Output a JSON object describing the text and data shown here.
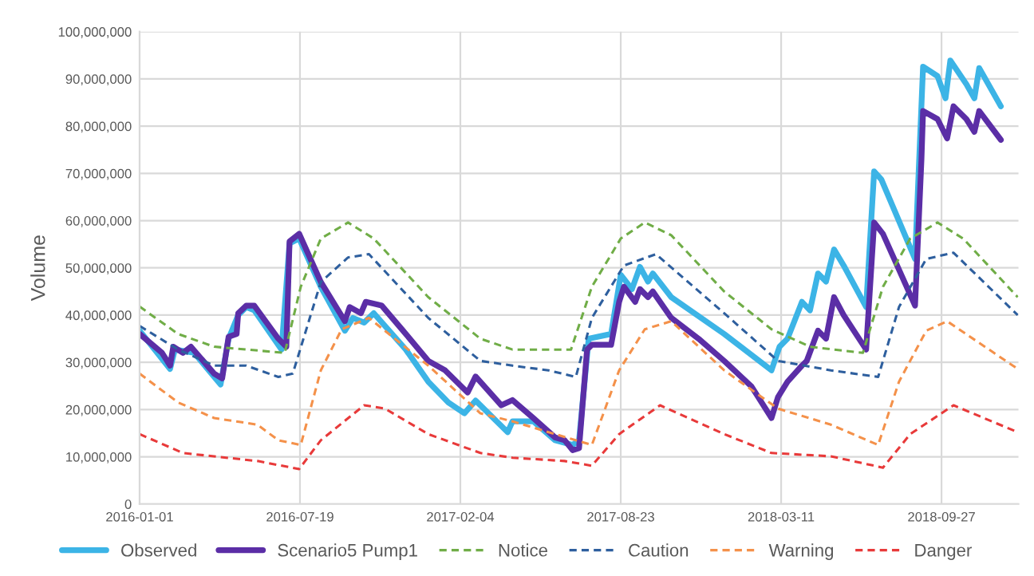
{
  "chart_data": {
    "type": "line",
    "ylabel": "Volume",
    "xlim": [
      "2016-01-01",
      "2019-01-01"
    ],
    "xticks": [
      "2016-01-01",
      "2016-07-19",
      "2017-02-04",
      "2017-08-23",
      "2018-03-11",
      "2018-09-27"
    ],
    "ylim": [
      0,
      100000000
    ],
    "yticks": [
      0,
      {
        "value": 10000000,
        "label": "10,000,000"
      },
      {
        "value": 20000000,
        "label": "20,000,000"
      },
      {
        "value": 30000000,
        "label": "30,000,000"
      },
      {
        "value": 40000000,
        "label": "40,000,000"
      },
      {
        "value": 50000000,
        "label": "50,000,000"
      },
      {
        "value": 60000000,
        "label": "60,000,000"
      },
      {
        "value": 70000000,
        "label": "70,000,000"
      },
      {
        "value": 80000000,
        "label": "80,000,000"
      },
      {
        "value": 90000000,
        "label": "90,000,000"
      },
      {
        "value": 100000000,
        "label": "100,000,000"
      }
    ],
    "grid": true,
    "legend": "bottom",
    "series": [
      {
        "name": "Observed",
        "color": "#3cb4e6",
        "line_style": "solid",
        "x": [
          "2016-01-01",
          "2016-02-08",
          "2016-02-14",
          "2016-03-09",
          "2016-04-11",
          "2016-04-21",
          "2016-05-03",
          "2016-05-13",
          "2016-05-23",
          "2016-06-26",
          "2016-07-06",
          "2016-07-18",
          "2016-08-14",
          "2016-09-13",
          "2016-09-23",
          "2016-10-07",
          "2016-10-19",
          "2016-11-28",
          "2016-12-26",
          "2017-01-20",
          "2017-02-09",
          "2017-02-23",
          "2017-04-04",
          "2017-04-10",
          "2017-05-06",
          "2017-06-02",
          "2017-06-24",
          "2017-07-02",
          "2017-07-14",
          "2017-08-11",
          "2017-08-23",
          "2017-09-06",
          "2017-09-16",
          "2017-09-26",
          "2017-10-02",
          "2017-10-25",
          "2017-12-30",
          "2018-02-27",
          "2018-03-09",
          "2018-03-19",
          "2018-04-06",
          "2018-04-16",
          "2018-04-26",
          "2018-05-06",
          "2018-05-16",
          "2018-05-28",
          "2018-06-25",
          "2018-07-05",
          "2018-07-14",
          "2018-08-25",
          "2018-09-04",
          "2018-09-22",
          "2018-10-02",
          "2018-10-08",
          "2018-10-28",
          "2018-11-07",
          "2018-11-13",
          "2018-12-10"
        ],
        "values": [
          36700000,
          28600000,
          32700000,
          32000000,
          25300000,
          35000000,
          40000000,
          41700000,
          41000000,
          32700000,
          55200000,
          56200000,
          46000000,
          36700000,
          39400000,
          38400000,
          40400000,
          32700000,
          25900000,
          21500000,
          19200000,
          21900000,
          15200000,
          17500000,
          17500000,
          13500000,
          12500000,
          13500000,
          35000000,
          36000000,
          48500000,
          45500000,
          50200000,
          47100000,
          48800000,
          43800000,
          36000000,
          28300000,
          33300000,
          35000000,
          42800000,
          41000000,
          48800000,
          47100000,
          53900000,
          50500000,
          41700000,
          70400000,
          68700000,
          51900000,
          92600000,
          90600000,
          85900000,
          93900000,
          88900000,
          85900000,
          92300000,
          84200000
        ]
      },
      {
        "name": "Scenario5 Pump1",
        "color": "#5b2ea6",
        "line_style": "solid",
        "x": [
          "2016-01-01",
          "2016-01-29",
          "2016-02-08",
          "2016-02-12",
          "2016-02-24",
          "2016-03-05",
          "2016-04-03",
          "2016-04-13",
          "2016-04-21",
          "2016-05-01",
          "2016-05-03",
          "2016-05-13",
          "2016-05-23",
          "2016-06-22",
          "2016-07-02",
          "2016-07-06",
          "2016-07-18",
          "2016-08-14",
          "2016-09-13",
          "2016-09-19",
          "2016-10-03",
          "2016-10-09",
          "2016-10-29",
          "2016-11-28",
          "2016-12-26",
          "2017-01-16",
          "2017-02-13",
          "2017-02-23",
          "2017-03-27",
          "2017-04-10",
          "2017-05-06",
          "2017-06-02",
          "2017-06-14",
          "2017-06-24",
          "2017-07-02",
          "2017-07-12",
          "2017-07-18",
          "2017-08-11",
          "2017-08-21",
          "2017-08-27",
          "2017-09-10",
          "2017-09-16",
          "2017-09-26",
          "2017-10-02",
          "2017-10-25",
          "2017-11-28",
          "2017-12-30",
          "2018-02-02",
          "2018-02-27",
          "2018-03-07",
          "2018-03-19",
          "2018-04-06",
          "2018-04-12",
          "2018-04-26",
          "2018-05-06",
          "2018-05-16",
          "2018-05-28",
          "2018-06-25",
          "2018-07-05",
          "2018-07-16",
          "2018-08-25",
          "2018-09-02",
          "2018-09-04",
          "2018-09-22",
          "2018-10-04",
          "2018-10-12",
          "2018-10-28",
          "2018-11-07",
          "2018-11-13",
          "2018-12-10"
        ],
        "values": [
          36000000,
          32000000,
          29300000,
          33300000,
          32000000,
          33300000,
          27600000,
          26600000,
          35400000,
          36000000,
          40400000,
          42000000,
          42000000,
          35000000,
          33300000,
          55600000,
          57200000,
          47000000,
          38700000,
          41700000,
          40400000,
          42800000,
          42000000,
          36000000,
          30300000,
          28300000,
          23600000,
          27000000,
          20900000,
          22000000,
          18200000,
          14100000,
          13500000,
          11400000,
          11800000,
          32700000,
          33700000,
          33700000,
          42800000,
          46000000,
          42800000,
          45500000,
          43800000,
          45000000,
          39400000,
          35000000,
          30300000,
          24900000,
          18200000,
          22600000,
          25900000,
          29300000,
          30300000,
          36700000,
          35000000,
          43800000,
          40000000,
          32700000,
          59600000,
          57200000,
          42000000,
          73000000,
          83200000,
          81500000,
          77400000,
          84200000,
          81500000,
          78800000,
          83200000,
          77100000
        ]
      },
      {
        "name": "Notice",
        "color": "#70ad47",
        "line_style": "dashed",
        "x": [
          "2016-01-01",
          "2016-02-18",
          "2016-04-03",
          "2016-06-30",
          "2016-07-20",
          "2016-08-14",
          "2016-09-17",
          "2016-10-19",
          "2016-12-26",
          "2017-03-01",
          "2017-04-10",
          "2017-06-22",
          "2017-07-18",
          "2017-08-23",
          "2017-09-22",
          "2017-10-25",
          "2017-12-30",
          "2018-02-27",
          "2018-04-16",
          "2018-06-21",
          "2018-07-16",
          "2018-08-19",
          "2018-09-22",
          "2018-10-24",
          "2018-12-31"
        ],
        "values": [
          41800000,
          36000000,
          33300000,
          32000000,
          46000000,
          56200000,
          59600000,
          56200000,
          43800000,
          35000000,
          32700000,
          32700000,
          46000000,
          56200000,
          59600000,
          56900000,
          45000000,
          37000000,
          33300000,
          32000000,
          46000000,
          56200000,
          59600000,
          56200000,
          43800000
        ]
      },
      {
        "name": "Caution",
        "color": "#2e5f9e",
        "line_style": "dashed",
        "x": [
          "2016-01-01",
          "2016-02-18",
          "2016-04-03",
          "2016-05-13",
          "2016-06-22",
          "2016-07-10",
          "2016-08-14",
          "2016-09-17",
          "2016-10-13",
          "2016-12-26",
          "2017-03-01",
          "2017-04-10",
          "2017-05-25",
          "2017-06-28",
          "2017-07-18",
          "2017-08-27",
          "2017-10-06",
          "2017-12-30",
          "2018-03-07",
          "2018-05-12",
          "2018-07-10",
          "2018-08-05",
          "2018-09-08",
          "2018-10-12",
          "2018-12-31"
        ],
        "values": [
          37700000,
          32700000,
          29300000,
          29300000,
          26900000,
          27600000,
          47000000,
          52200000,
          52900000,
          39400000,
          30300000,
          29300000,
          28300000,
          26900000,
          39400000,
          50500000,
          52900000,
          40400000,
          30300000,
          28300000,
          26900000,
          41700000,
          51900000,
          53200000,
          40000000
        ]
      },
      {
        "name": "Warning",
        "color": "#f4914a",
        "line_style": "dashed",
        "x": [
          "2016-01-01",
          "2016-02-18",
          "2016-04-03",
          "2016-05-27",
          "2016-06-22",
          "2016-07-20",
          "2016-08-14",
          "2016-09-09",
          "2016-10-13",
          "2016-12-26",
          "2017-03-01",
          "2017-04-10",
          "2017-06-02",
          "2017-07-18",
          "2017-08-21",
          "2017-09-22",
          "2017-10-25",
          "2017-12-30",
          "2018-03-07",
          "2018-05-12",
          "2018-07-10",
          "2018-08-05",
          "2018-09-08",
          "2018-10-04",
          "2018-12-31"
        ],
        "values": [
          27600000,
          21500000,
          18200000,
          16800000,
          13500000,
          12500000,
          28300000,
          37000000,
          39400000,
          29300000,
          19200000,
          17500000,
          14800000,
          12500000,
          28300000,
          37000000,
          38700000,
          28300000,
          20200000,
          16800000,
          12500000,
          25900000,
          36700000,
          38700000,
          28600000
        ]
      },
      {
        "name": "Danger",
        "color": "#e83a3a",
        "line_style": "dashed",
        "x": [
          "2016-01-01",
          "2016-02-24",
          "2016-05-27",
          "2016-07-18",
          "2016-08-14",
          "2016-10-07",
          "2016-11-02",
          "2016-12-26",
          "2017-03-01",
          "2017-04-10",
          "2017-06-14",
          "2017-07-18",
          "2017-08-21",
          "2017-10-11",
          "2017-12-30",
          "2018-02-27",
          "2018-05-12",
          "2018-07-16",
          "2018-08-19",
          "2018-10-12",
          "2018-12-31"
        ],
        "values": [
          14800000,
          10800000,
          9100000,
          7400000,
          13500000,
          20900000,
          20200000,
          14800000,
          10800000,
          9800000,
          9100000,
          8100000,
          14800000,
          20900000,
          14800000,
          10800000,
          10100000,
          7700000,
          14800000,
          20900000,
          15200000
        ]
      }
    ]
  }
}
